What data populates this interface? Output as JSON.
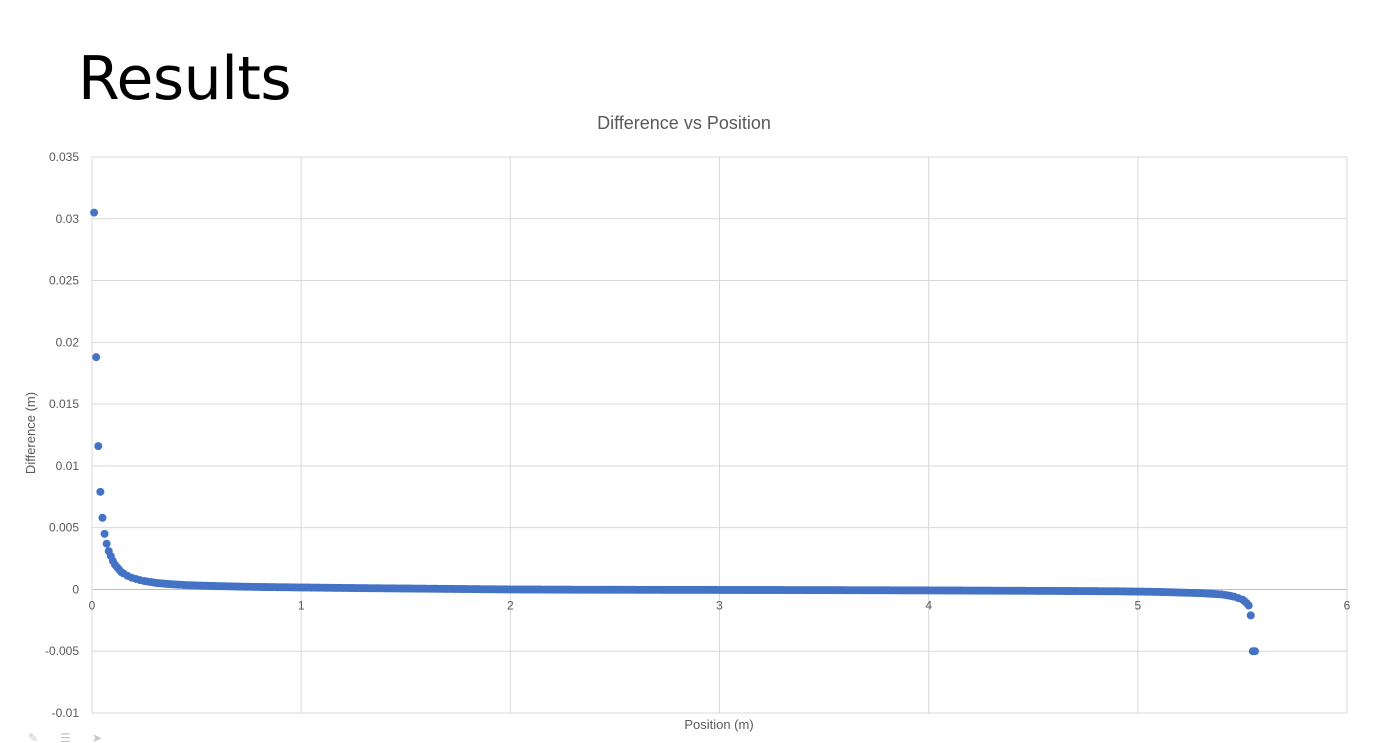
{
  "slide": {
    "title": "Results"
  },
  "chart_data": {
    "type": "scatter",
    "title": "Difference vs Position",
    "xlabel": "Position (m)",
    "ylabel": "Difference (m)",
    "xlim": [
      0,
      6
    ],
    "ylim": [
      -0.01,
      0.035
    ],
    "x_ticks": [
      0,
      1,
      2,
      3,
      4,
      5,
      6
    ],
    "x_tick_labels": [
      "0",
      "1",
      "2",
      "3",
      "4",
      "5",
      "6"
    ],
    "y_ticks": [
      -0.01,
      -0.005,
      0,
      0.005,
      0.01,
      0.015,
      0.02,
      0.025,
      0.03,
      0.035
    ],
    "y_tick_labels": [
      "-0.01",
      "-0.005",
      "0",
      "0.005",
      "0.01",
      "0.015",
      "0.02",
      "0.025",
      "0.03",
      "0.035"
    ],
    "grid": true,
    "legend": "none",
    "marker_color": "#4472c4",
    "series": [
      {
        "x": [
          0.01,
          0.02,
          0.03,
          0.04,
          0.05,
          0.06,
          0.07,
          0.08,
          0.09,
          0.1,
          0.11,
          0.12,
          0.13,
          0.14,
          0.15,
          0.17,
          0.19,
          0.21,
          0.23,
          0.25,
          0.28,
          0.31,
          0.35,
          0.4,
          0.45,
          0.5,
          0.6,
          0.7,
          0.8,
          0.9,
          1.0,
          1.2,
          1.4,
          1.6,
          1.8,
          2.0,
          2.3,
          2.6,
          3.0,
          3.3,
          3.6,
          4.0,
          4.3,
          4.6,
          4.9,
          5.1,
          5.2,
          5.3,
          5.35,
          5.4,
          5.43,
          5.46,
          5.48,
          5.5,
          5.51,
          5.52,
          5.53,
          5.54,
          5.55,
          5.56
        ],
        "y": [
          0.0305,
          0.0188,
          0.0116,
          0.0079,
          0.0058,
          0.0045,
          0.0037,
          0.0031,
          0.0027,
          0.0023,
          0.002,
          0.0018,
          0.0016,
          0.0014,
          0.0013,
          0.0011,
          0.00095,
          0.00085,
          0.00075,
          0.00068,
          0.0006,
          0.00052,
          0.00046,
          0.0004,
          0.00035,
          0.00032,
          0.00027,
          0.00023,
          0.0002,
          0.00018,
          0.00016,
          0.00012,
          9e-05,
          6e-05,
          3e-05,
          0.0,
          -2e-05,
          -3e-05,
          -4e-05,
          -5e-05,
          -6e-05,
          -8e-05,
          -0.0001,
          -0.00012,
          -0.00015,
          -0.0002,
          -0.00025,
          -0.0003,
          -0.00035,
          -0.0004,
          -0.00048,
          -0.00058,
          -0.0007,
          -0.00082,
          -0.00095,
          -0.0011,
          -0.0013,
          -0.0021,
          -0.005,
          -0.005
        ]
      }
    ]
  }
}
